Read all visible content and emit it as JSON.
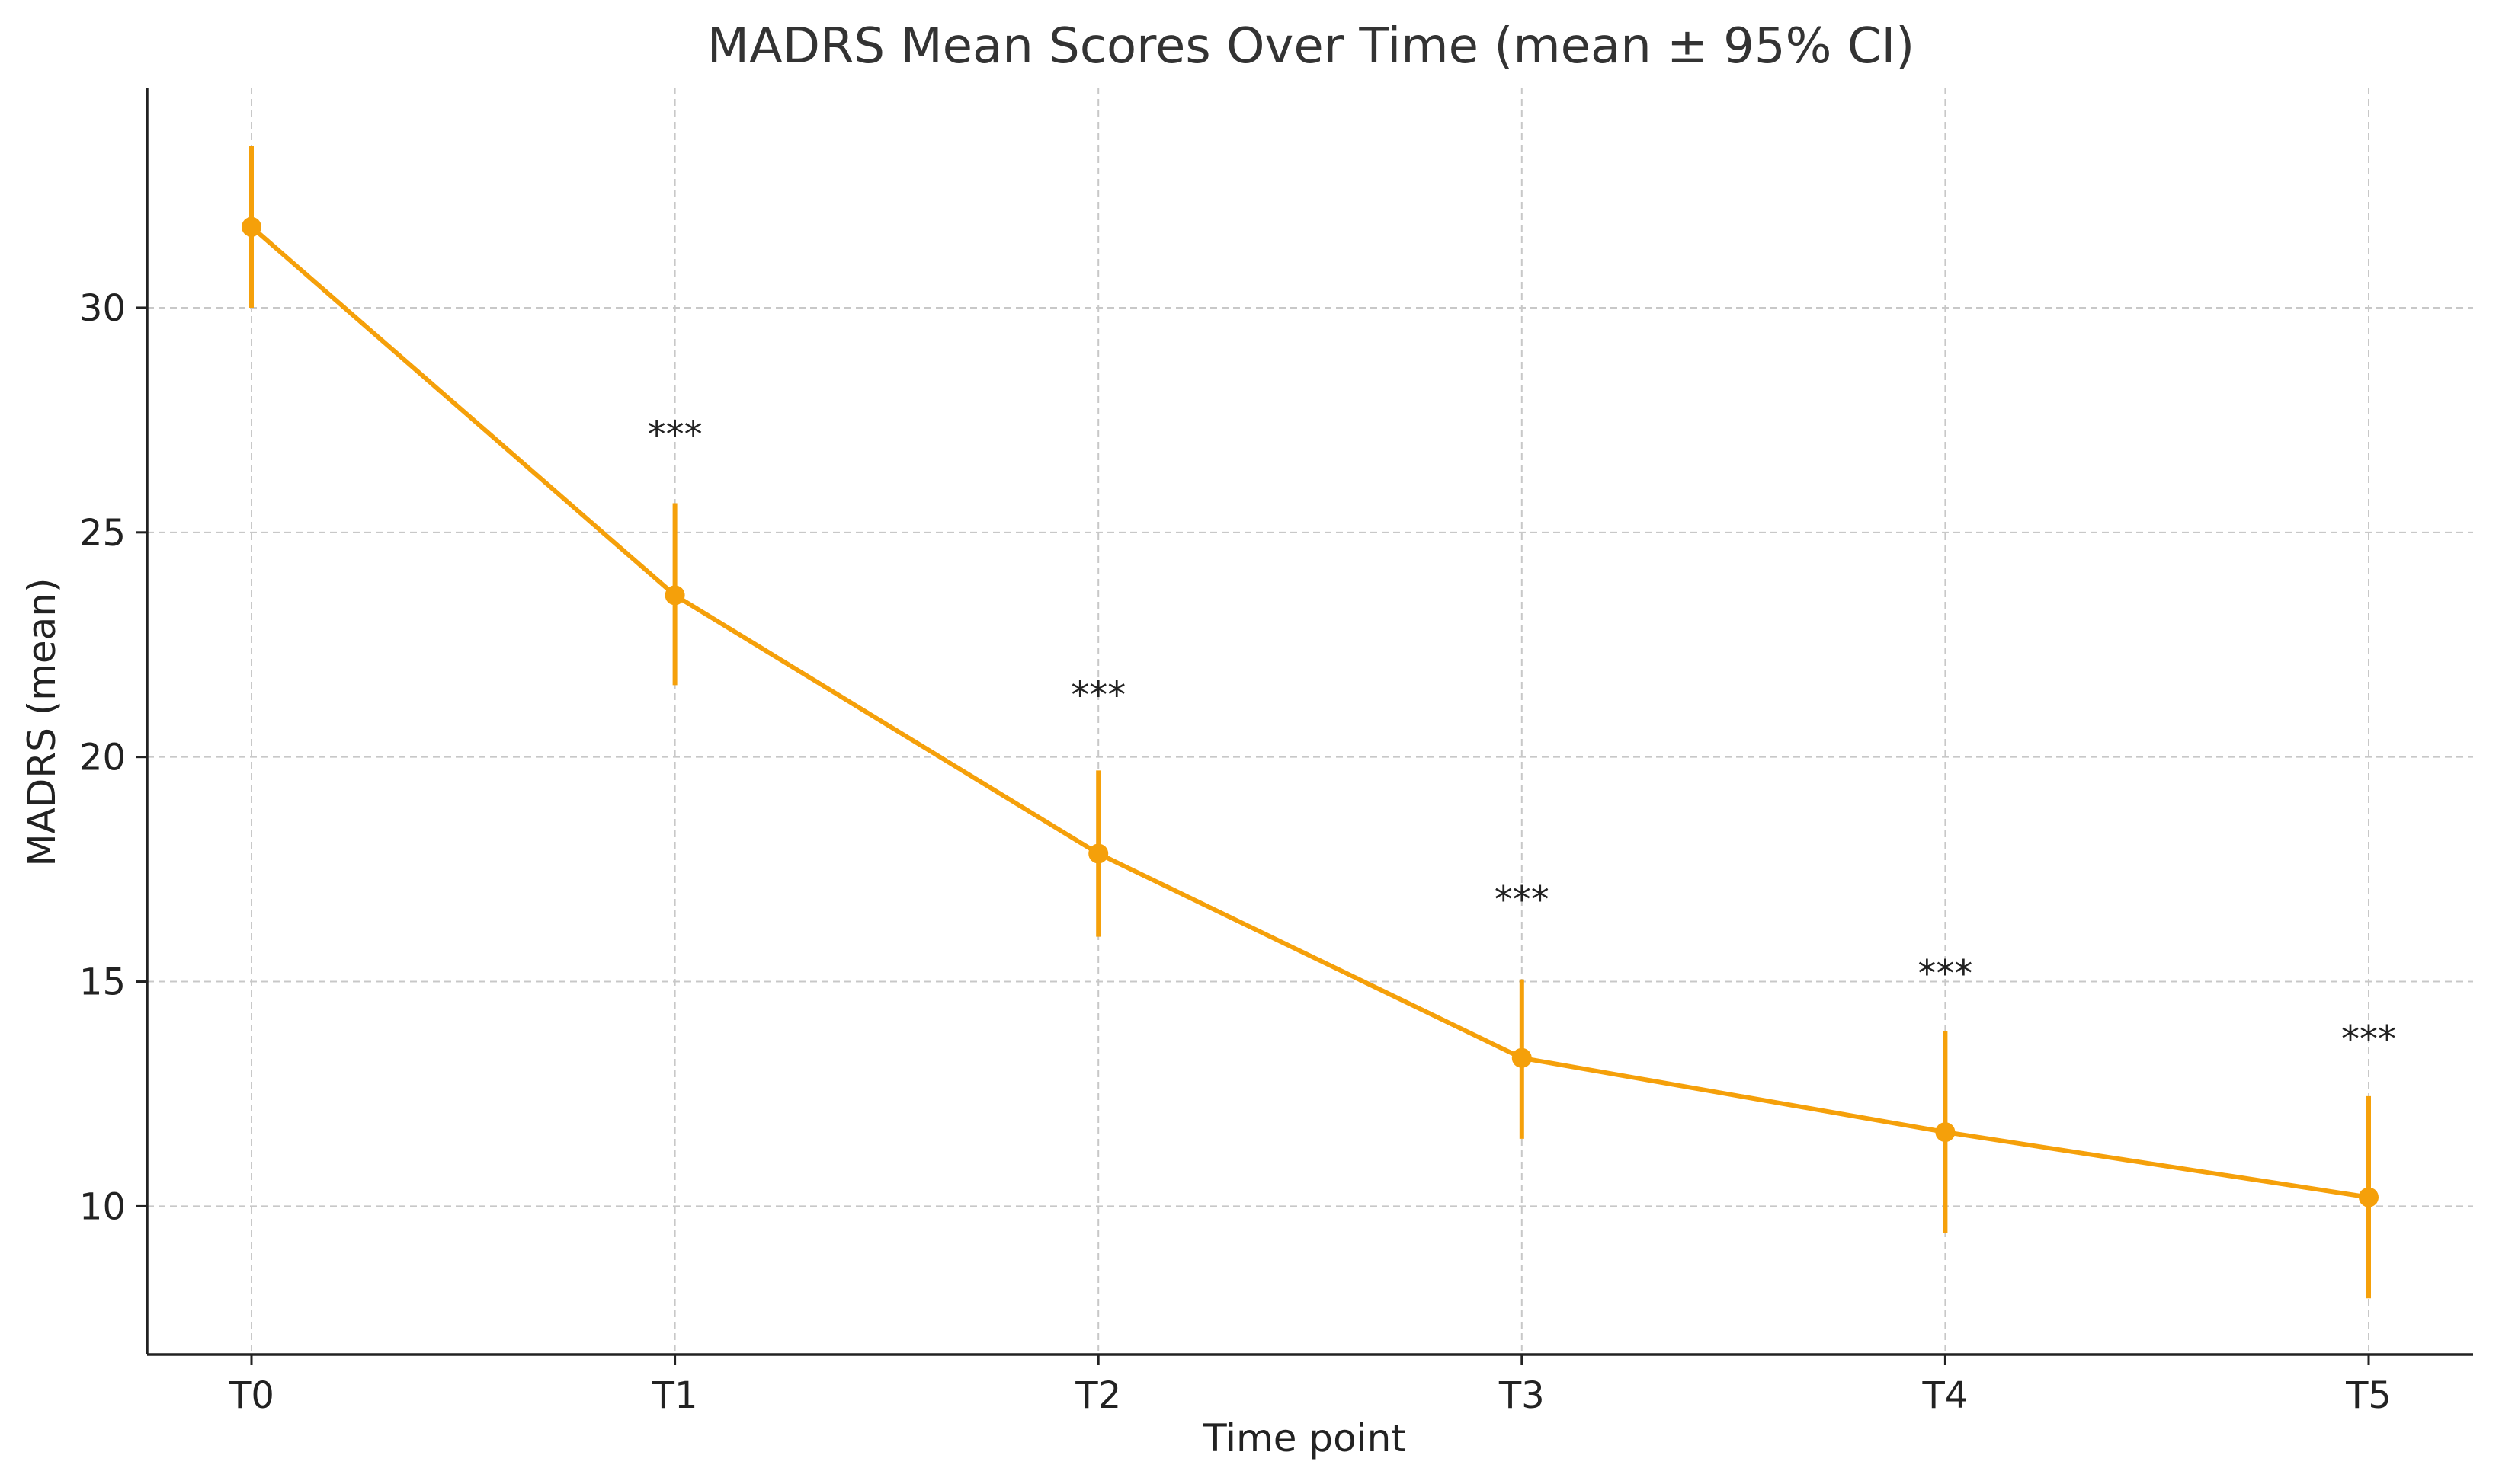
{
  "chart_data": {
    "type": "line",
    "title": "MADRS Mean Scores Over Time (mean ± 95% CI)",
    "xlabel": "Time point",
    "ylabel": "MADRS (mean)",
    "categories": [
      "T0",
      "T1",
      "T2",
      "T3",
      "T4",
      "T5"
    ],
    "series": [
      {
        "values": [
          31.8,
          23.6,
          17.85,
          13.3,
          11.65,
          10.2
        ],
        "ci_lower": [
          30.0,
          21.6,
          16.0,
          11.5,
          9.4,
          7.95
        ],
        "ci_upper": [
          33.6,
          25.65,
          19.7,
          15.05,
          13.9,
          12.45
        ],
        "color": "#f5a00a"
      }
    ],
    "annotations": [
      {
        "category": "T1",
        "text": "***",
        "y": 27.2
      },
      {
        "category": "T2",
        "text": "***",
        "y": 21.4
      },
      {
        "category": "T3",
        "text": "***",
        "y": 16.85
      },
      {
        "category": "T4",
        "text": "***",
        "y": 15.2
      },
      {
        "category": "T5",
        "text": "***",
        "y": 13.75
      }
    ],
    "yticks": [
      10,
      15,
      20,
      25,
      30
    ],
    "ylim": [
      6.7,
      34.9
    ],
    "grid": true,
    "colors": {
      "line": "#f5a00a",
      "grid": "#c8c8c8",
      "axis": "#222222",
      "text": "#222222",
      "title": "#333333"
    }
  }
}
